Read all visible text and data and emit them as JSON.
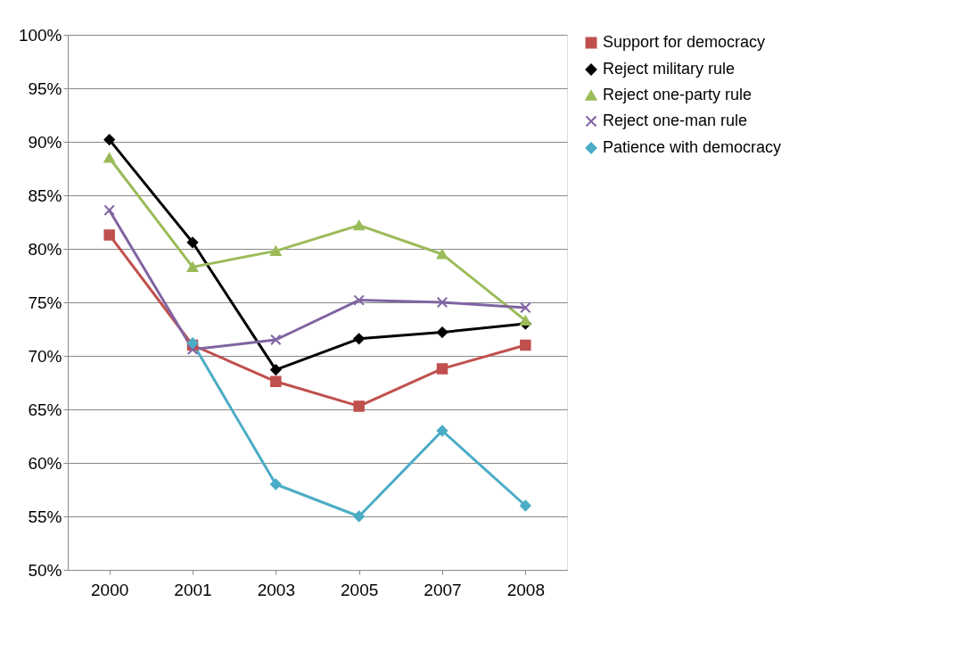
{
  "chart_data": {
    "type": "line",
    "categories": [
      "2000",
      "2001",
      "2003",
      "2005",
      "2007",
      "2008"
    ],
    "series": [
      {
        "name": "Support for democracy",
        "color": "#c0504d",
        "marker": "square",
        "values": [
          81.3,
          71.0,
          67.6,
          65.3,
          68.8,
          71.0
        ]
      },
      {
        "name": "Reject military rule",
        "color": "#000000",
        "marker": "diamond",
        "values": [
          90.2,
          80.6,
          68.7,
          71.6,
          72.2,
          73.0
        ]
      },
      {
        "name": "Reject one-party rule",
        "color": "#9bbb59",
        "marker": "triangle",
        "values": [
          88.5,
          78.3,
          79.8,
          82.2,
          79.5,
          73.3
        ]
      },
      {
        "name": "Reject one-man rule",
        "color": "#8064a2",
        "marker": "cross",
        "values": [
          83.6,
          70.6,
          71.5,
          75.2,
          75.0,
          74.5
        ]
      },
      {
        "name": "Patience with democracy",
        "color": "#4bacc6",
        "marker": "diamond",
        "values": [
          null,
          71.2,
          58.0,
          55.0,
          63.0,
          56.0
        ]
      }
    ],
    "ylim": [
      50,
      100
    ],
    "yticks": [
      {
        "value": 50,
        "label": "50%"
      },
      {
        "value": 55,
        "label": "55%"
      },
      {
        "value": 60,
        "label": "60%"
      },
      {
        "value": 65,
        "label": "65%"
      },
      {
        "value": 70,
        "label": "70%"
      },
      {
        "value": 75,
        "label": "75%"
      },
      {
        "value": 80,
        "label": "80%"
      },
      {
        "value": 85,
        "label": "85%"
      },
      {
        "value": 90,
        "label": "90%"
      },
      {
        "value": 95,
        "label": "95%"
      },
      {
        "value": 100,
        "label": "100%"
      }
    ],
    "grid": "y",
    "legend": "right",
    "line_style": "solid"
  }
}
